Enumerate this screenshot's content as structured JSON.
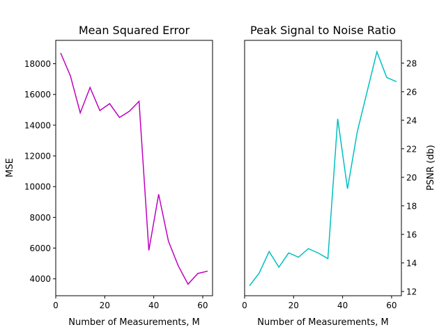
{
  "chart_data": [
    {
      "type": "line",
      "title": "Mean Squared Error",
      "xlabel": "Number of Measurements, M",
      "ylabel": "MSE",
      "xlim": [
        0.0,
        64.0
      ],
      "ylim": [
        2900,
        19520
      ],
      "x_ticks": [
        0,
        20,
        40,
        60
      ],
      "y_ticks": [
        4000,
        6000,
        8000,
        10000,
        12000,
        14000,
        16000,
        18000
      ],
      "y_axis_side": "left",
      "grid": false,
      "color": "#bf00bf",
      "series": [
        {
          "x": [
            2,
            6,
            10,
            14,
            18,
            22,
            26,
            30,
            34,
            38,
            42,
            46,
            50,
            54,
            58,
            62
          ],
          "values": [
            18700,
            17200,
            14800,
            16450,
            14950,
            15400,
            14500,
            14900,
            15550,
            5850,
            9500,
            6450,
            4850,
            3650,
            4350,
            4500
          ]
        }
      ]
    },
    {
      "type": "line",
      "title": "Peak Signal to Noise Ratio",
      "xlabel": "Number of Measurements, M",
      "ylabel": "PSNR (db)",
      "xlim": [
        0.0,
        64.0
      ],
      "ylim": [
        11.7,
        29.6
      ],
      "x_ticks": [
        0,
        20,
        40,
        60
      ],
      "y_ticks": [
        12,
        14,
        16,
        18,
        20,
        22,
        24,
        26,
        28
      ],
      "y_axis_side": "right",
      "grid": false,
      "color": "#00bfbf",
      "series": [
        {
          "x": [
            2,
            6,
            10,
            14,
            18,
            22,
            26,
            30,
            34,
            38,
            42,
            46,
            50,
            54,
            58,
            62
          ],
          "values": [
            12.4,
            13.3,
            14.8,
            13.7,
            14.7,
            14.4,
            15.0,
            14.7,
            14.3,
            24.1,
            19.2,
            23.2,
            26.0,
            28.8,
            27.0,
            26.7
          ]
        }
      ]
    }
  ]
}
